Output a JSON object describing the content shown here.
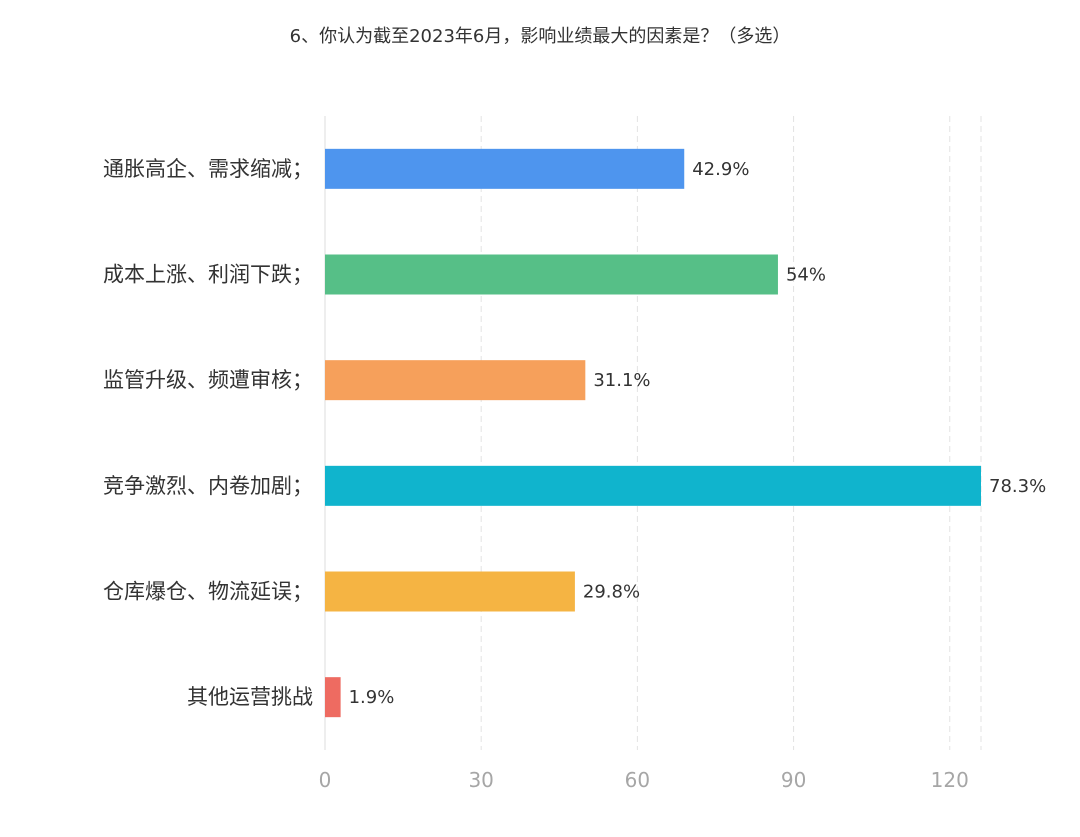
{
  "chart_data": {
    "type": "bar",
    "orientation": "horizontal",
    "title": "6、你认为截至2023年6月，影响业绩最大的因素是？（多选）",
    "categories": [
      "通胀高企、需求缩减；",
      "成本上涨、利润下跌；",
      "监管升级、频遭审核；",
      "竞争激烈、内卷加剧；",
      "仓库爆仓、物流延误；",
      "其他运营挑战"
    ],
    "values": [
      69,
      87,
      50,
      126,
      48,
      3
    ],
    "data_labels": [
      "42.9%",
      "54%",
      "31.1%",
      "78.3%",
      "29.8%",
      "1.9%"
    ],
    "colors": [
      "#4e95ee",
      "#56bf87",
      "#f6a05b",
      "#10b4cd",
      "#f5b443",
      "#ee6b61"
    ],
    "x_ticks": [
      "0",
      "30",
      "60",
      "90",
      "120"
    ],
    "xlim": [
      0,
      126
    ],
    "grid": true,
    "legend": "none"
  }
}
